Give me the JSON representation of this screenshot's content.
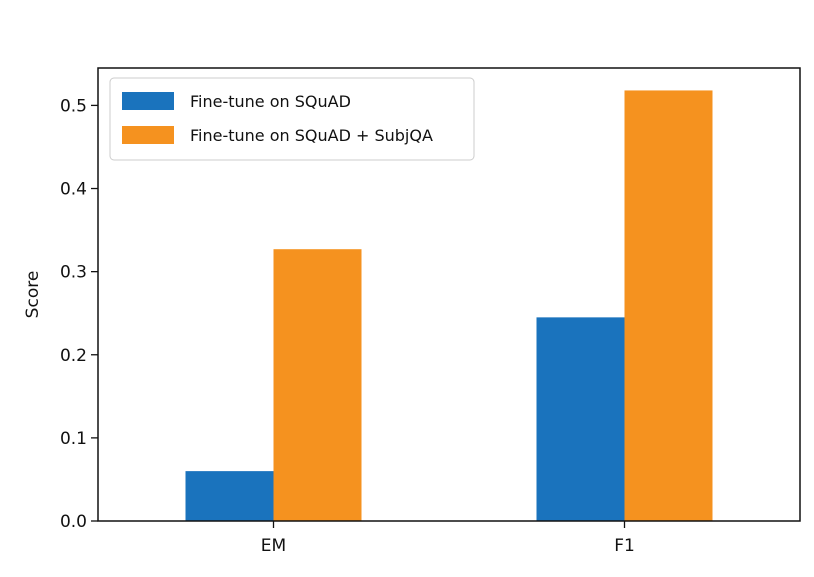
{
  "chart_data": {
    "type": "bar",
    "categories": [
      "EM",
      "F1"
    ],
    "series": [
      {
        "name": "Fine-tune on SQuAD",
        "values": [
          0.06,
          0.245
        ],
        "color": "#1a73bd"
      },
      {
        "name": "Fine-tune on SQuAD + SubjQA",
        "values": [
          0.327,
          0.518
        ],
        "color": "#f5921f"
      }
    ],
    "xlabel": "",
    "ylabel": "Score",
    "ylim": [
      0,
      0.545
    ],
    "yticks": [
      0.0,
      0.1,
      0.2,
      0.3,
      0.4,
      0.5
    ],
    "ytick_labels": [
      "0.0",
      "0.1",
      "0.2",
      "0.3",
      "0.4",
      "0.5"
    ],
    "grid": false,
    "legend_position": "top-left"
  }
}
